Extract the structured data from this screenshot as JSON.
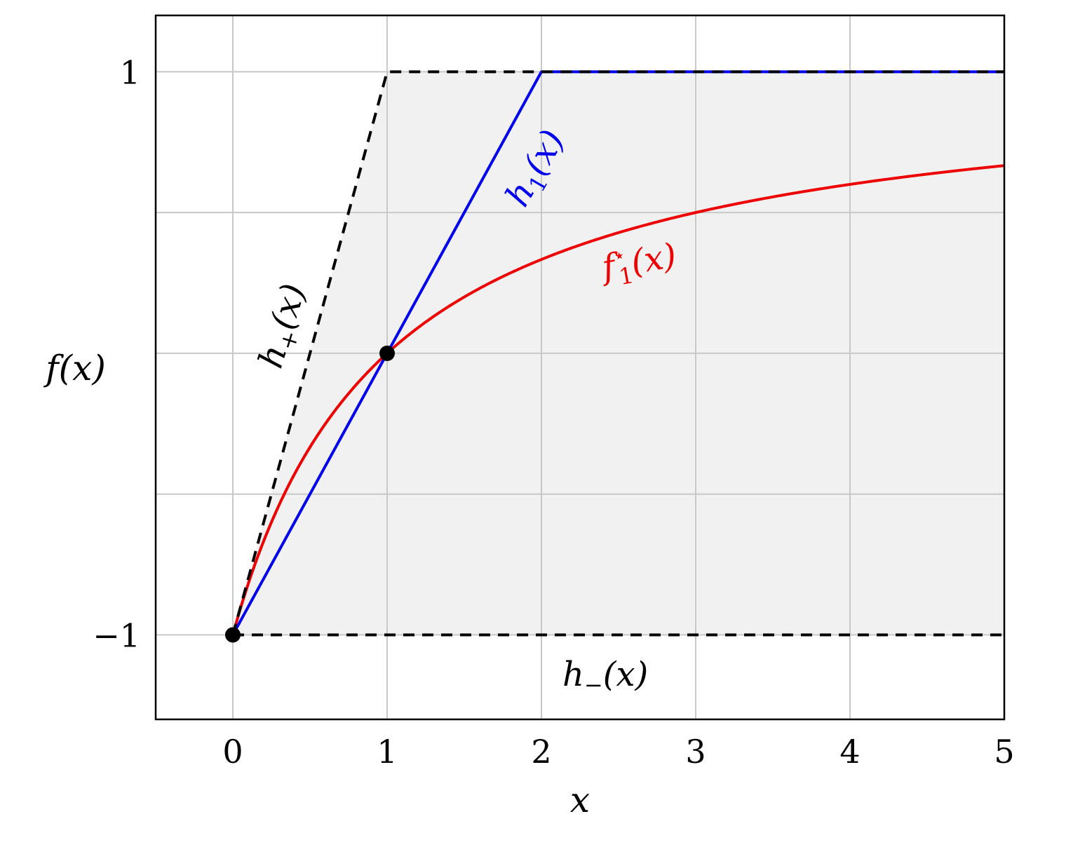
{
  "chart_data": {
    "type": "line",
    "xlabel": "x",
    "ylabel": "f(x)",
    "xlim": [
      -0.5,
      5
    ],
    "ylim": [
      -1.3,
      1.2
    ],
    "x_ticks": [
      "0",
      "1",
      "2",
      "3",
      "4",
      "5"
    ],
    "x_tick_values": [
      0,
      1,
      2,
      3,
      4,
      5
    ],
    "y_ticks": [
      "−1",
      "1"
    ],
    "y_tick_values": [
      -1,
      1
    ],
    "grid": true,
    "shaded_region": {
      "description_fill": "#f1f1f1",
      "upper": [
        [
          0,
          -1
        ],
        [
          1,
          1
        ],
        [
          5,
          1
        ]
      ],
      "lower": [
        [
          0,
          -1
        ],
        [
          5,
          -1
        ]
      ]
    },
    "series": [
      {
        "name": "h+(x)",
        "label_main": "h",
        "label_sub": "+",
        "label_args": "(x)",
        "color": "#000000",
        "style": "dashed",
        "points": [
          [
            0,
            -1
          ],
          [
            1,
            1
          ],
          [
            5,
            1
          ]
        ]
      },
      {
        "name": "h−(x)",
        "label_main": "h",
        "label_sub": "−",
        "label_args": "(x)",
        "color": "#000000",
        "style": "dashed",
        "points": [
          [
            0,
            -1
          ],
          [
            5,
            -1
          ]
        ]
      },
      {
        "name": "h1(x)",
        "label_main": "h",
        "label_sub": "1",
        "label_args": "(x)",
        "color": "#0000ee",
        "style": "solid",
        "points": [
          [
            0,
            -1
          ],
          [
            2,
            1
          ],
          [
            5,
            1
          ]
        ]
      },
      {
        "name": "f1*(x)",
        "label_main": "f",
        "label_sub": "1",
        "label_sup": "⋆",
        "label_args": "(x)",
        "color": "#ee0000",
        "style": "solid",
        "function": "(x-1)/(x+1)",
        "domain": [
          0,
          5
        ]
      }
    ],
    "markers": [
      [
        0,
        -1
      ],
      [
        1,
        0
      ]
    ]
  }
}
